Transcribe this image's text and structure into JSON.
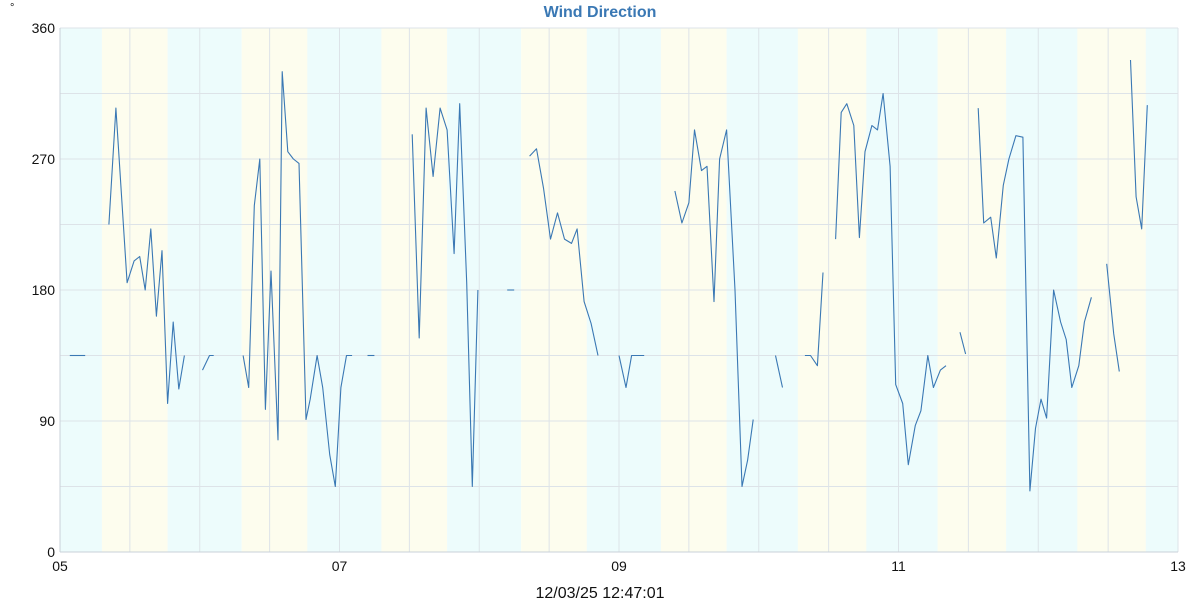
{
  "chart_data": {
    "type": "line",
    "title": "Wind Direction",
    "unit": "°",
    "timestamp": "12/03/25 12:47:01",
    "ylim": [
      0,
      360
    ],
    "y_ticks": [
      "0",
      "90",
      "180",
      "270",
      "360"
    ],
    "xlim": [
      5,
      13
    ],
    "x_ticks": [
      {
        "value": 5,
        "label": "05"
      },
      {
        "value": 7,
        "label": "07"
      },
      {
        "value": 9,
        "label": "09"
      },
      {
        "value": 11,
        "label": "11"
      },
      {
        "value": 13,
        "label": "13"
      }
    ],
    "grid": true,
    "line_color": "#3a78b4",
    "band_colors": {
      "night": "#edfcfc",
      "day": "#fdfdee"
    },
    "bands": [
      {
        "from": 5.0,
        "to": 5.3,
        "kind": "night"
      },
      {
        "from": 5.3,
        "to": 5.77,
        "kind": "day"
      },
      {
        "from": 5.77,
        "to": 6.3,
        "kind": "night"
      },
      {
        "from": 6.3,
        "to": 6.77,
        "kind": "day"
      },
      {
        "from": 6.77,
        "to": 7.3,
        "kind": "night"
      },
      {
        "from": 7.3,
        "to": 7.77,
        "kind": "day"
      },
      {
        "from": 7.77,
        "to": 8.3,
        "kind": "night"
      },
      {
        "from": 8.3,
        "to": 8.77,
        "kind": "day"
      },
      {
        "from": 8.77,
        "to": 9.3,
        "kind": "night"
      },
      {
        "from": 9.3,
        "to": 9.77,
        "kind": "day"
      },
      {
        "from": 9.77,
        "to": 10.28,
        "kind": "night"
      },
      {
        "from": 10.28,
        "to": 10.77,
        "kind": "day"
      },
      {
        "from": 10.77,
        "to": 11.28,
        "kind": "night"
      },
      {
        "from": 11.28,
        "to": 11.77,
        "kind": "day"
      },
      {
        "from": 11.77,
        "to": 12.28,
        "kind": "night"
      },
      {
        "from": 12.28,
        "to": 12.77,
        "kind": "day"
      },
      {
        "from": 12.77,
        "to": 13.0,
        "kind": "night"
      }
    ],
    "series": [
      {
        "segments": [
          [
            [
              5.07,
              135
            ],
            [
              5.18,
              135
            ]
          ],
          [
            [
              5.35,
              225
            ],
            [
              5.4,
              305
            ],
            [
              5.45,
              230
            ],
            [
              5.48,
              185
            ],
            [
              5.53,
              200
            ],
            [
              5.57,
              203
            ],
            [
              5.61,
              180
            ],
            [
              5.65,
              222
            ],
            [
              5.69,
              162
            ],
            [
              5.73,
              207
            ],
            [
              5.77,
              102
            ],
            [
              5.81,
              158
            ],
            [
              5.85,
              112
            ],
            [
              5.89,
              135
            ]
          ],
          [
            [
              6.02,
              125
            ],
            [
              6.07,
              135
            ],
            [
              6.1,
              135
            ]
          ],
          [
            [
              6.31,
              135
            ],
            [
              6.35,
              113
            ],
            [
              6.39,
              238
            ],
            [
              6.43,
              270
            ],
            [
              6.47,
              98
            ],
            [
              6.51,
              193
            ],
            [
              6.56,
              77
            ],
            [
              6.59,
              330
            ],
            [
              6.63,
              275
            ],
            [
              6.67,
              270
            ],
            [
              6.71,
              267
            ],
            [
              6.76,
              91
            ],
            [
              6.79,
              105
            ],
            [
              6.84,
              135
            ],
            [
              6.88,
              113
            ],
            [
              6.93,
              67
            ],
            [
              6.97,
              45
            ],
            [
              7.01,
              113
            ],
            [
              7.05,
              135
            ],
            [
              7.09,
              135
            ]
          ],
          [
            [
              7.2,
              135
            ],
            [
              7.25,
              135
            ]
          ],
          [
            [
              7.52,
              287
            ],
            [
              7.57,
              147
            ],
            [
              7.62,
              305
            ],
            [
              7.67,
              258
            ],
            [
              7.72,
              305
            ],
            [
              7.77,
              290
            ],
            [
              7.82,
              205
            ],
            [
              7.86,
              308
            ],
            [
              7.91,
              185
            ],
            [
              7.95,
              45
            ],
            [
              7.99,
              180
            ]
          ],
          [
            [
              8.2,
              180
            ],
            [
              8.25,
              180
            ]
          ],
          [
            [
              8.36,
              272
            ],
            [
              8.41,
              277
            ],
            [
              8.46,
              250
            ],
            [
              8.51,
              215
            ],
            [
              8.56,
              233
            ],
            [
              8.61,
              215
            ],
            [
              8.66,
              212
            ],
            [
              8.7,
              222
            ],
            [
              8.75,
              172
            ],
            [
              8.8,
              157
            ],
            [
              8.85,
              135
            ]
          ],
          [
            [
              9.0,
              135
            ],
            [
              9.05,
              113
            ],
            [
              9.09,
              135
            ],
            [
              9.14,
              135
            ],
            [
              9.18,
              135
            ]
          ],
          [
            [
              9.4,
              248
            ],
            [
              9.45,
              226
            ],
            [
              9.5,
              240
            ],
            [
              9.54,
              290
            ],
            [
              9.59,
              262
            ],
            [
              9.63,
              265
            ],
            [
              9.68,
              172
            ],
            [
              9.72,
              270
            ],
            [
              9.77,
              290
            ],
            [
              9.83,
              180
            ],
            [
              9.88,
              45
            ],
            [
              9.92,
              63
            ],
            [
              9.96,
              91
            ]
          ],
          [
            [
              10.12,
              135
            ],
            [
              10.17,
              113
            ]
          ],
          [
            [
              10.33,
              135
            ],
            [
              10.37,
              135
            ],
            [
              10.42,
              128
            ],
            [
              10.46,
              192
            ]
          ],
          [
            [
              10.55,
              215
            ],
            [
              10.59,
              302
            ],
            [
              10.63,
              308
            ],
            [
              10.68,
              293
            ],
            [
              10.72,
              216
            ],
            [
              10.76,
              275
            ],
            [
              10.81,
              293
            ],
            [
              10.85,
              290
            ],
            [
              10.89,
              315
            ],
            [
              10.94,
              265
            ],
            [
              10.98,
              115
            ],
            [
              11.03,
              102
            ],
            [
              11.07,
              60
            ],
            [
              11.12,
              87
            ],
            [
              11.16,
              97
            ],
            [
              11.21,
              135
            ],
            [
              11.25,
              113
            ],
            [
              11.3,
              125
            ],
            [
              11.34,
              128
            ]
          ],
          [
            [
              11.44,
              151
            ],
            [
              11.48,
              136
            ]
          ],
          [
            [
              11.57,
              305
            ],
            [
              11.61,
              226
            ],
            [
              11.66,
              230
            ],
            [
              11.7,
              202
            ],
            [
              11.75,
              252
            ],
            [
              11.79,
              270
            ],
            [
              11.84,
              286
            ],
            [
              11.89,
              285
            ],
            [
              11.94,
              42
            ],
            [
              11.98,
              85
            ],
            [
              12.02,
              105
            ],
            [
              12.06,
              92
            ],
            [
              12.11,
              180
            ],
            [
              12.16,
              158
            ],
            [
              12.2,
              146
            ],
            [
              12.24,
              113
            ],
            [
              12.29,
              128
            ],
            [
              12.33,
              158
            ],
            [
              12.38,
              175
            ]
          ],
          [
            [
              12.49,
              198
            ],
            [
              12.54,
              150
            ],
            [
              12.58,
              124
            ]
          ],
          [
            [
              12.66,
              338
            ],
            [
              12.7,
              244
            ],
            [
              12.74,
              222
            ],
            [
              12.78,
              307
            ]
          ]
        ]
      }
    ]
  }
}
